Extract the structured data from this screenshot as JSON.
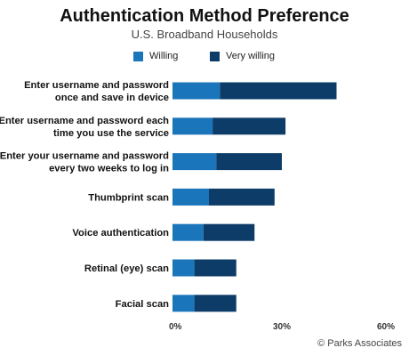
{
  "chart_data": {
    "type": "bar",
    "orientation": "horizontal",
    "stacked": true,
    "title": "Authentication Method Preference",
    "subtitle": "U.S. Broadband Households",
    "categories": [
      "Enter username and password once and save in device",
      "Enter username and password each time you use the service",
      "Enter your username and password every two weeks to log in",
      "Thumbprint scan",
      "Voice authentication",
      "Retinal (eye) scan",
      "Facial scan"
    ],
    "category_lines": [
      [
        "Enter username and password",
        "once and save in device"
      ],
      [
        "Enter username and password each",
        "time you use the service"
      ],
      [
        "Enter your username and password",
        "every two weeks to log in"
      ],
      [
        "Thumbprint scan"
      ],
      [
        "Voice authentication"
      ],
      [
        "Retinal (eye) scan"
      ],
      [
        "Facial scan"
      ]
    ],
    "series": [
      {
        "name": "Willing",
        "color": "#1b75bb",
        "values": [
          13,
          11,
          12,
          10,
          8.5,
          6,
          6
        ]
      },
      {
        "name": "Very willing",
        "color": "#0d3c68",
        "values": [
          32,
          20,
          18,
          18,
          14,
          11.5,
          11.5
        ]
      }
    ],
    "xlim": [
      0,
      60
    ],
    "xticks": [
      0,
      30,
      60
    ],
    "xtick_labels": [
      "0%",
      "30%",
      "60%"
    ],
    "legend_position": "top",
    "grid": false,
    "source": "© Parks Associates"
  }
}
